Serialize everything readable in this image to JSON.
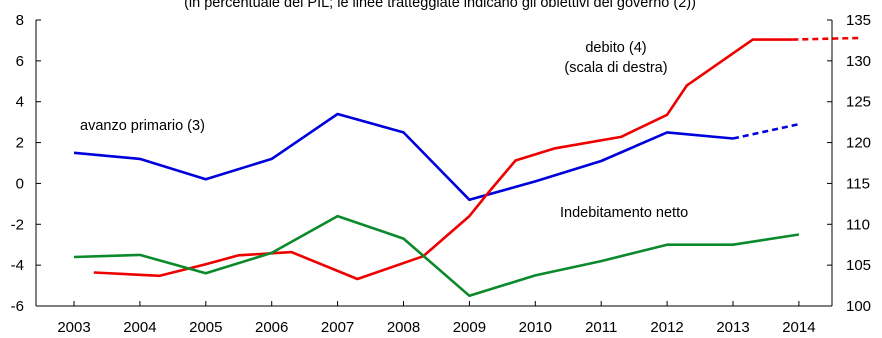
{
  "chart_data": {
    "type": "line",
    "subtitle": "(in percentuale del PIL; le linee tratteggiate indicano gli obiettivi del governo (2))",
    "x": [
      "2003",
      "2004",
      "2005",
      "2006",
      "2007",
      "2008",
      "2009",
      "2010",
      "2011",
      "2012",
      "2013",
      "2014"
    ],
    "y_left": {
      "range": [
        -6,
        8
      ],
      "ticks": [
        "-6",
        "-4",
        "-2",
        "0",
        "2",
        "4",
        "6",
        "8"
      ]
    },
    "y_right": {
      "range": [
        100,
        135
      ],
      "ticks": [
        "100",
        "105",
        "110",
        "115",
        "120",
        "125",
        "130",
        "135"
      ]
    },
    "grid": false,
    "series": [
      {
        "name": "avanzo primario (3)",
        "axis": "left",
        "color": "#0000dd",
        "x": [
          2003,
          2004,
          2005,
          2006,
          2007,
          2008,
          2009,
          2010,
          2011,
          2012,
          2013
        ],
        "values": [
          1.5,
          1.2,
          0.2,
          1.2,
          3.4,
          2.5,
          -0.8,
          0.1,
          1.1,
          2.5,
          2.2
        ],
        "target": {
          "x": [
            2013,
            2014
          ],
          "values": [
            2.2,
            2.9
          ]
        }
      },
      {
        "name": "debito (4) (scala di destra)",
        "axis": "right",
        "color": "#ee0000",
        "x": [
          2003.3,
          2004.3,
          2005,
          2005.5,
          2006.3,
          2007.3,
          2008.3,
          2009,
          2009.3,
          2009.7,
          2010.3,
          2011.3,
          2012,
          2012.3,
          2013.3,
          2013.9
        ],
        "values": [
          104.1,
          103.7,
          105.1,
          106.2,
          106.6,
          103.3,
          106.1,
          111,
          114,
          117.8,
          119.3,
          120.7,
          123.4,
          127.0,
          132.6,
          132.6
        ],
        "target": {
          "x": [
            2013.9,
            2014.9
          ],
          "values": [
            132.6,
            132.8
          ]
        }
      },
      {
        "name": "Indebitamento netto",
        "axis": "left",
        "color": "#0a8a2a",
        "x": [
          2003,
          2004,
          2005,
          2006,
          2007,
          2008,
          2009,
          2010,
          2011,
          2012,
          2013,
          2014
        ],
        "values": [
          -3.6,
          -3.5,
          -4.4,
          -3.4,
          -1.6,
          -2.7,
          -5.5,
          -4.5,
          -3.8,
          -3.0,
          -3.0,
          -2.5
        ]
      }
    ],
    "annotations": [
      {
        "id": "debito",
        "lines": [
          "debito (4)",
          "(scala di destra)"
        ]
      },
      {
        "id": "avanzo",
        "lines": [
          "avanzo primario (3)"
        ]
      },
      {
        "id": "indeb",
        "lines": [
          "Indebitamento netto"
        ]
      }
    ]
  }
}
